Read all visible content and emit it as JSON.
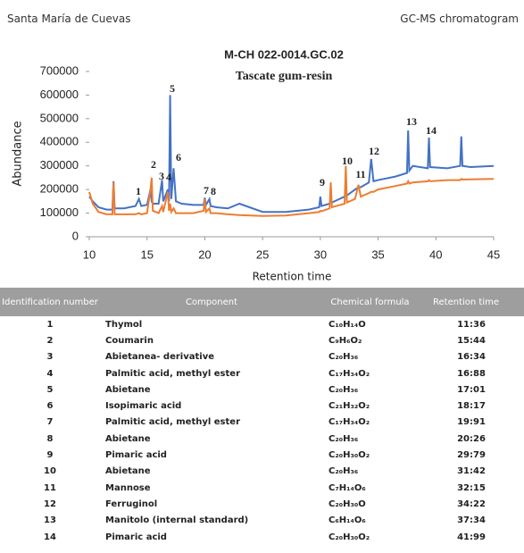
{
  "header": {
    "site": "Santa María  de Cuevas",
    "method": "GC-MS chromatogram"
  },
  "chart_data": {
    "type": "line",
    "title": "M-CH 022-0014.GC.02",
    "subtitle": "Tascate gum-resin",
    "x_label": "Retention time",
    "y_label": "Abundance",
    "x": [
      10,
      10.3,
      10.8,
      11.5,
      12,
      12.1,
      12.2,
      13,
      14,
      14.3,
      14.5,
      15,
      15.3,
      15.4,
      15.5,
      16,
      16.3,
      16.4,
      16.8,
      16.9,
      17,
      17.1,
      17.3,
      17.5,
      18,
      19,
      19.9,
      20,
      20.1,
      20.4,
      20.5,
      21,
      22,
      23,
      25,
      27,
      29,
      29.9,
      30,
      30.1,
      30.8,
      30.9,
      31,
      32.1,
      32.2,
      32.3,
      33,
      33.3,
      33.5,
      34.2,
      34.4,
      34.6,
      35,
      36.5,
      37.5,
      37.6,
      37.7,
      38,
      39.3,
      39.4,
      39.5,
      41,
      42.1,
      42.2,
      42.3,
      43,
      45
    ],
    "series": [
      {
        "color": "#4472c4",
        "values": [
          170000,
          150000,
          125000,
          115000,
          115000,
          235000,
          120000,
          120000,
          130000,
          160000,
          130000,
          135000,
          200000,
          150000,
          140000,
          140000,
          240000,
          150000,
          200000,
          150000,
          600000,
          160000,
          290000,
          150000,
          140000,
          135000,
          135000,
          165000,
          135000,
          160000,
          130000,
          125000,
          120000,
          140000,
          105000,
          105000,
          115000,
          125000,
          170000,
          130000,
          140000,
          150000,
          145000,
          170000,
          185000,
          175000,
          200000,
          210000,
          210000,
          230000,
          330000,
          235000,
          240000,
          255000,
          270000,
          450000,
          280000,
          300000,
          290000,
          420000,
          295000,
          290000,
          300000,
          425000,
          300000,
          295000,
          300000
        ]
      },
      {
        "color": "#ed7d31",
        "values": [
          190000,
          140000,
          105000,
          95000,
          95000,
          230000,
          95000,
          95000,
          95000,
          100000,
          95000,
          100000,
          200000,
          250000,
          110000,
          100000,
          130000,
          105000,
          190000,
          110000,
          140000,
          105000,
          120000,
          100000,
          100000,
          100000,
          110000,
          160000,
          105000,
          120000,
          100000,
          100000,
          95000,
          92000,
          88000,
          90000,
          100000,
          105000,
          110000,
          108000,
          120000,
          230000,
          125000,
          140000,
          300000,
          145000,
          160000,
          220000,
          170000,
          185000,
          190000,
          190000,
          200000,
          215000,
          225000,
          235000,
          225000,
          230000,
          235000,
          240000,
          235000,
          240000,
          240000,
          245000,
          242000,
          243000,
          245000
        ]
      }
    ],
    "peak_labels": [
      "1",
      "2",
      "3",
      "4",
      "5",
      "6",
      "7",
      "8",
      "9",
      "10",
      "11",
      "12",
      "13",
      "14"
    ],
    "xlim": [
      10,
      45
    ],
    "xticks": [
      10,
      15,
      20,
      25,
      30,
      35,
      40,
      45
    ],
    "ylim": [
      0,
      700000
    ],
    "yticks": [
      0,
      100000,
      200000,
      300000,
      400000,
      500000,
      600000,
      700000
    ]
  },
  "table": {
    "header": [
      "Identification number",
      "Component",
      "Chemical formula",
      "Retention time"
    ],
    "rows": [
      [
        "1",
        "Thymol",
        "C₁₀H₁₄O",
        "11:36"
      ],
      [
        "2",
        "Coumarin",
        "C₉H₆O₂",
        "15:44"
      ],
      [
        "3",
        "Abietanea- derivative",
        "C₂₀H₃₆",
        "16:34"
      ],
      [
        "4",
        "Palmitic acid, methyl ester",
        "C₁₇H₃₄O₂",
        "16:88"
      ],
      [
        "5",
        "Abietane",
        "C₂₀H₃₆",
        "17:01"
      ],
      [
        "6",
        "Isopimaric acid",
        "C₂₁H₃₂O₂",
        "18:17"
      ],
      [
        "7",
        "Palmitic acid, methyl ester",
        "C₁₇H₃₄O₂",
        "19:91"
      ],
      [
        "8",
        "Abietane",
        "C₂₀H₃₆",
        "20:26"
      ],
      [
        "9",
        "Pimaric acid",
        "C₂₀H₃₀O₂",
        "29:79"
      ],
      [
        "10",
        "Abietane",
        "C₂₀H₃₆",
        "31:42"
      ],
      [
        "11",
        "Mannose",
        "C₇H₁₄O₆",
        "32:15"
      ],
      [
        "12",
        "Ferruginol",
        "C₂₀H₃₀O",
        "34:22"
      ],
      [
        "13",
        "Manitolo (internal standard)",
        "C₆H₁₄O₆",
        "37:34"
      ],
      [
        "14",
        "Pimaric acid",
        "C₂₀H₃₀O₂",
        "41:99"
      ]
    ]
  }
}
